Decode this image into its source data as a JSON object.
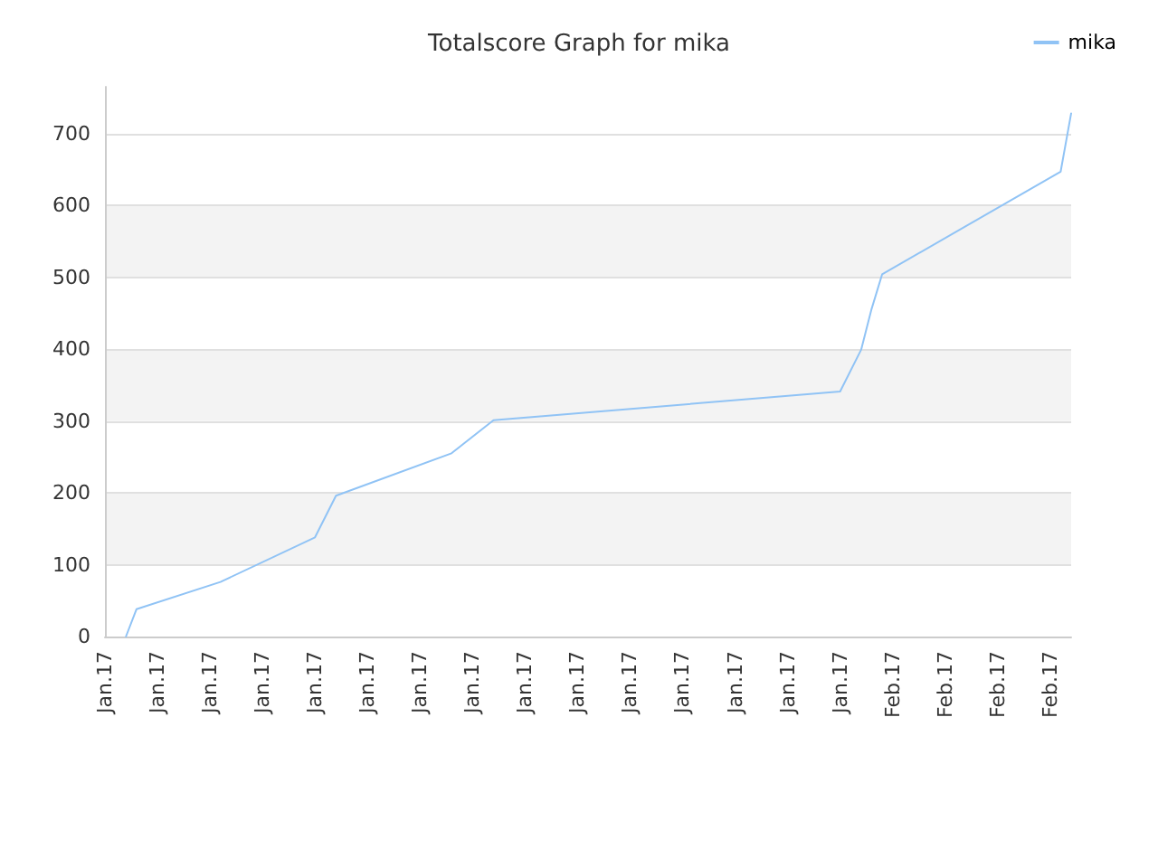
{
  "chart_data": {
    "type": "line",
    "title": "Totalscore Graph for mika",
    "categories": [
      "Jan.17",
      null,
      null,
      null,
      null,
      "Jan.17",
      null,
      null,
      null,
      null,
      "Jan.17",
      null,
      null,
      null,
      null,
      "Jan.17",
      null,
      null,
      null,
      null,
      "Jan.17",
      null,
      null,
      null,
      null,
      "Jan.17",
      null,
      null,
      null,
      null,
      "Jan.17",
      null,
      null,
      null,
      null,
      "Jan.17",
      null,
      null,
      null,
      null,
      "Jan.17",
      null,
      null,
      null,
      null,
      "Jan.17",
      null,
      null,
      null,
      null,
      "Jan.17",
      null,
      null,
      null,
      null,
      "Jan.17",
      null,
      null,
      null,
      null,
      "Jan.17",
      null,
      null,
      null,
      null,
      "Jan.17",
      null,
      null,
      null,
      null,
      "Jan.17",
      null,
      null,
      null,
      null,
      "Feb.17",
      null,
      null,
      null,
      null,
      "Feb.17",
      null,
      null,
      null,
      null,
      "Feb.17",
      null,
      null,
      null,
      null,
      "Feb.17",
      null,
      null
    ],
    "ylim": [
      0,
      765
    ],
    "yticks": [
      0,
      100,
      200,
      300,
      400,
      500,
      600,
      700
    ],
    "series": [
      {
        "name": "mika",
        "color": "#90c3f5",
        "values": [
          null,
          null,
          0,
          38,
          null,
          null,
          null,
          null,
          null,
          null,
          null,
          76,
          null,
          null,
          null,
          null,
          null,
          null,
          null,
          null,
          138,
          null,
          196,
          null,
          null,
          null,
          null,
          null,
          null,
          null,
          null,
          null,
          null,
          255,
          null,
          null,
          null,
          301,
          null,
          null,
          null,
          null,
          null,
          null,
          null,
          null,
          null,
          null,
          null,
          null,
          null,
          null,
          null,
          null,
          null,
          null,
          null,
          null,
          null,
          null,
          null,
          null,
          null,
          null,
          null,
          null,
          null,
          null,
          null,
          null,
          341,
          null,
          399,
          456,
          504,
          null,
          null,
          null,
          null,
          null,
          null,
          null,
          null,
          null,
          null,
          null,
          null,
          null,
          null,
          null,
          null,
          647,
          728
        ]
      }
    ],
    "grid": "y",
    "legend": "top right",
    "marker": "none",
    "line_style": "solid"
  }
}
